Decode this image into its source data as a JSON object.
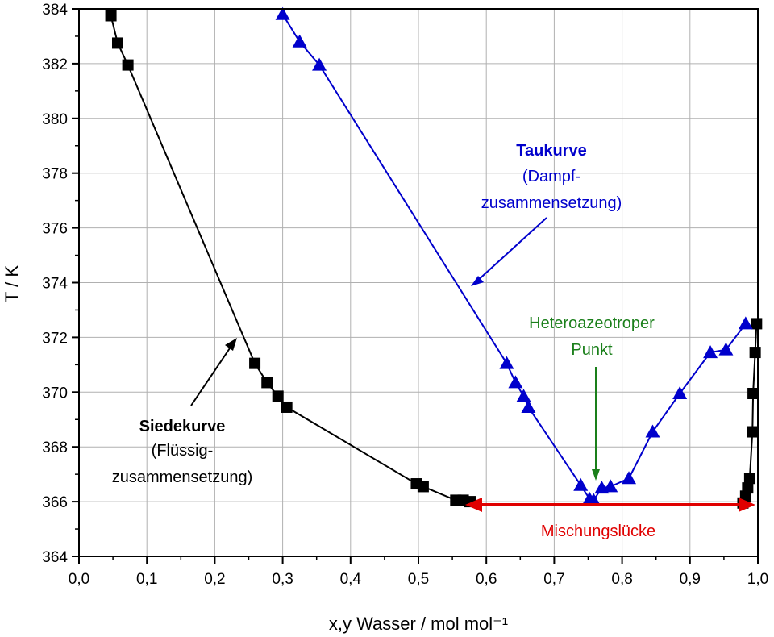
{
  "chart_data": {
    "type": "scatter",
    "xlabel": "x,y Wasser / mol mol⁻¹",
    "ylabel": "T / K",
    "xlim": [
      0.0,
      1.0
    ],
    "ylim": [
      364,
      384
    ],
    "x_ticks": [
      "0,0",
      "0,1",
      "0,2",
      "0,3",
      "0,4",
      "0,5",
      "0,6",
      "0,7",
      "0,8",
      "0,9",
      "1,0"
    ],
    "y_ticks": [
      "364",
      "366",
      "368",
      "370",
      "372",
      "374",
      "376",
      "378",
      "380",
      "382",
      "384"
    ],
    "grid": true,
    "series": [
      {
        "key": "siede",
        "color": "#000000",
        "marker": "square",
        "points": [
          [
            0.047,
            383.75
          ],
          [
            0.057,
            382.75
          ],
          [
            0.072,
            381.95
          ],
          [
            0.259,
            371.05
          ],
          [
            0.277,
            370.35
          ],
          [
            0.293,
            369.85
          ],
          [
            0.306,
            369.45
          ],
          [
            0.497,
            366.65
          ],
          [
            0.507,
            366.55
          ],
          [
            0.555,
            366.05
          ],
          [
            0.566,
            366.05
          ],
          [
            0.576,
            366.0
          ]
        ]
      },
      {
        "key": "siede_right",
        "color": "#000000",
        "marker": "square",
        "points": [
          [
            0.978,
            365.95
          ],
          [
            0.982,
            366.2
          ],
          [
            0.985,
            366.5
          ],
          [
            0.988,
            366.85
          ],
          [
            0.992,
            368.55
          ],
          [
            0.993,
            369.95
          ],
          [
            0.996,
            371.45
          ],
          [
            0.998,
            372.5
          ]
        ]
      },
      {
        "key": "tau",
        "color": "#0000cc",
        "marker": "triangle",
        "points": [
          [
            0.3,
            383.8
          ],
          [
            0.325,
            382.8
          ],
          [
            0.354,
            381.95
          ],
          [
            0.63,
            371.05
          ],
          [
            0.643,
            370.35
          ],
          [
            0.655,
            369.85
          ],
          [
            0.662,
            369.45
          ],
          [
            0.739,
            366.6
          ],
          [
            0.752,
            366.1
          ],
          [
            0.758,
            366.05
          ],
          [
            0.77,
            366.5
          ],
          [
            0.783,
            366.55
          ],
          [
            0.81,
            366.85
          ],
          [
            0.845,
            368.55
          ],
          [
            0.885,
            369.95
          ],
          [
            0.93,
            371.45
          ],
          [
            0.953,
            371.55
          ],
          [
            0.982,
            372.5
          ]
        ]
      }
    ],
    "annotations": {
      "siede_title": "Siedekurve",
      "siede_sub1": "(Flüssig-",
      "siede_sub2": "zusammensetzung)",
      "tau_title": "Taukurve",
      "tau_sub1": "(Dampf-",
      "tau_sub2": "zusammensetzung)",
      "hetero_line1": "Heteroazeotroper",
      "hetero_line2": "Punkt",
      "misch": "Mischungslücke"
    },
    "colors": {
      "siede": "#000000",
      "tau": "#0000cc",
      "hetero": "#1a7f1a",
      "misch": "#e00000",
      "grid": "#b0b0b0"
    }
  }
}
